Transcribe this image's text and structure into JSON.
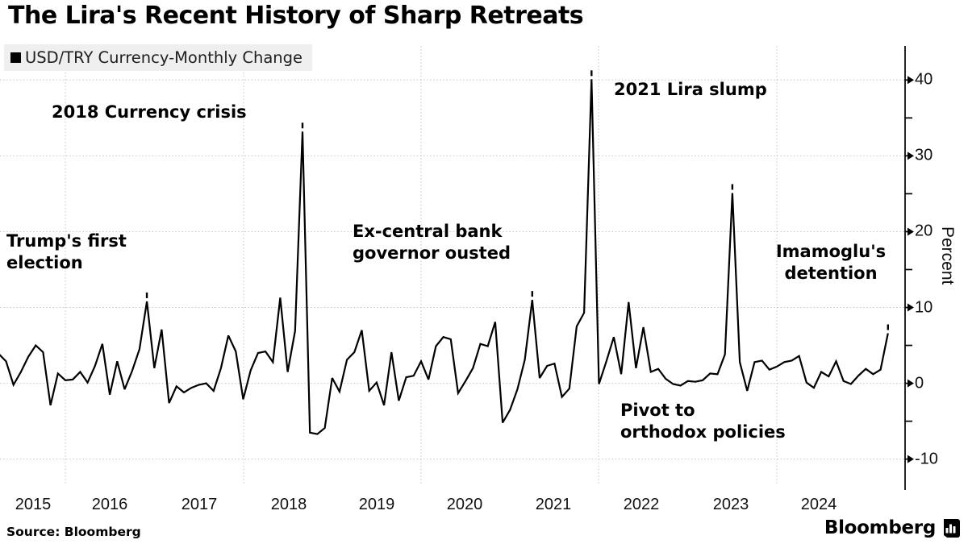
{
  "title": "The Lira's Recent History of Sharp Retreats",
  "legend": {
    "label": "USD/TRY Currency-Monthly Change",
    "swatch_color": "#000000"
  },
  "source": "Source: Bloomberg",
  "branding": {
    "wordmark": "Bloomberg"
  },
  "colors": {
    "line": "#000000",
    "grid": "#c6c6c6",
    "axis": "#000000",
    "legend_bg": "#efefef",
    "background": "#ffffff"
  },
  "chart_data": {
    "type": "line",
    "series_name": "USD/TRY Currency-Monthly Change",
    "frequency": "monthly",
    "x_start": "2015-03",
    "x_end": "2025-03",
    "unit": "percent",
    "ylabel": "Percent",
    "y_ticks": [
      40,
      30,
      20,
      10,
      0,
      -10
    ],
    "y_minor_ticks": [
      35,
      25,
      15,
      5,
      -5
    ],
    "ylim": [
      -14,
      44.5
    ],
    "x_tick_labels": [
      "2015",
      "2016",
      "2017",
      "2018",
      "2019",
      "2020",
      "2021",
      "2022",
      "2023",
      "2024"
    ],
    "grid": "dotted",
    "legend_position": "top-left",
    "values": [
      3.9,
      2.9,
      -0.2,
      1.5,
      3.5,
      5.0,
      4.1,
      -2.9,
      1.3,
      0.4,
      0.5,
      1.5,
      0.1,
      2.3,
      5.2,
      -1.5,
      2.9,
      -0.8,
      1.6,
      4.5,
      10.8,
      2.0,
      7.1,
      -2.6,
      -0.4,
      -1.2,
      -0.6,
      -0.2,
      0.0,
      -1.0,
      2.0,
      6.3,
      4.2,
      -2.1,
      1.7,
      4.0,
      4.2,
      2.8,
      11.3,
      1.5,
      6.9,
      33.2,
      -6.5,
      -6.7,
      -5.9,
      0.7,
      -1.1,
      3.1,
      4.1,
      7.0,
      -1.0,
      0.1,
      -2.9,
      4.1,
      -2.3,
      0.8,
      1.0,
      2.9,
      0.5,
      4.9,
      6.1,
      5.8,
      -1.3,
      0.3,
      2.0,
      5.2,
      4.9,
      8.1,
      -5.2,
      -3.5,
      -0.8,
      3.1,
      11.0,
      0.7,
      2.3,
      2.6,
      -1.8,
      -0.7,
      7.5,
      9.3,
      40.1,
      -0.1,
      2.9,
      6.1,
      1.2,
      10.7,
      2.0,
      7.4,
      1.5,
      1.9,
      0.6,
      -0.1,
      -0.3,
      0.3,
      0.2,
      0.4,
      1.3,
      1.2,
      3.8,
      25.1,
      2.8,
      -1.0,
      2.8,
      3.0,
      1.8,
      2.2,
      2.8,
      3.0,
      3.6,
      0.1,
      -0.6,
      1.5,
      0.9,
      2.9,
      0.3,
      -0.1,
      1.0,
      1.9,
      1.2,
      1.8,
      6.6
    ],
    "marked_peak_indices": [
      20,
      41,
      72,
      80,
      99,
      120
    ],
    "annotations": [
      {
        "text": "2018 Currency crisis"
      },
      {
        "text": "Trump's first\nelection"
      },
      {
        "text": "Ex-central bank\ngovernor ousted"
      },
      {
        "text": "2021 Lira slump"
      },
      {
        "text": "Pivot to\northodox policies"
      },
      {
        "text": "Imamoglu's\ndetention"
      }
    ]
  }
}
